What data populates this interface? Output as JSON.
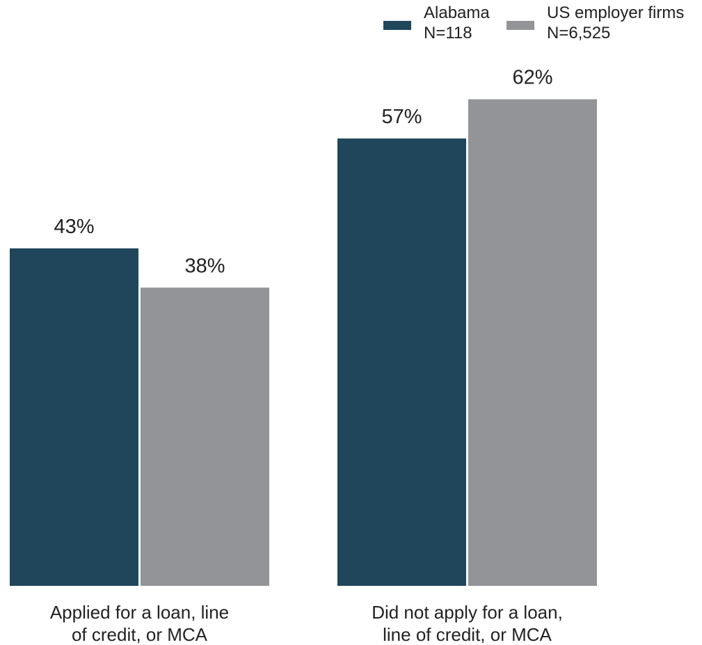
{
  "chart_data": {
    "type": "bar",
    "categories": [
      [
        "Applied for a loan, line",
        "of credit, or MCA"
      ],
      [
        "Did not apply for a loan,",
        "line of credit, or MCA"
      ]
    ],
    "series": [
      {
        "name": "Alabama",
        "note": "N=118",
        "color": "#20465c",
        "values": [
          43,
          57
        ],
        "labels": [
          "43%",
          "57%"
        ]
      },
      {
        "name": "US employer firms",
        "note": "N=6,525",
        "color": "#939497",
        "values": [
          38,
          62
        ],
        "labels": [
          "38%",
          "62%"
        ]
      }
    ],
    "ylim": [
      0,
      100
    ],
    "grid": false,
    "legend_position": "top-right"
  }
}
